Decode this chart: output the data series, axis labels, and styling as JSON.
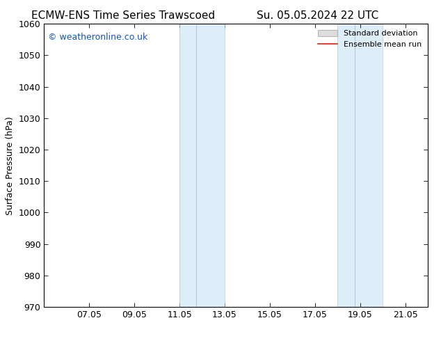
{
  "title_left": "ECMW-ENS Time Series Trawscoed",
  "title_right": "Su. 05.05.2024 22 UTC",
  "ylabel": "Surface Pressure (hPa)",
  "ylim": [
    970,
    1060
  ],
  "yticks": [
    970,
    980,
    990,
    1000,
    1010,
    1020,
    1030,
    1040,
    1050,
    1060
  ],
  "xtick_positions": [
    2,
    4,
    6,
    8,
    10,
    12,
    14,
    16
  ],
  "xtick_labels": [
    "07.05",
    "09.05",
    "11.05",
    "13.05",
    "15.05",
    "17.05",
    "19.05",
    "21.05"
  ],
  "xlim": [
    0,
    17
  ],
  "shaded_bands": [
    {
      "x_start": 6.0,
      "x_end": 6.75,
      "x_mid": 6.75,
      "x_end2": 8.0
    },
    {
      "x_start": 13.0,
      "x_end": 13.75,
      "x_mid": 13.75,
      "x_end2": 15.0
    }
  ],
  "shade_color_light": "#deeef8",
  "shade_color_dark": "#c8dff0",
  "shade_mid_line_color": "#aaccdd",
  "watermark": "© weatheronline.co.uk",
  "watermark_color": "#1155bb",
  "watermark_fontsize": 9,
  "legend_std_dev_color": "#dddddd",
  "legend_mean_color": "#dd2200",
  "background_color": "#ffffff",
  "title_fontsize": 11,
  "tick_fontsize": 9,
  "ylabel_fontsize": 9
}
